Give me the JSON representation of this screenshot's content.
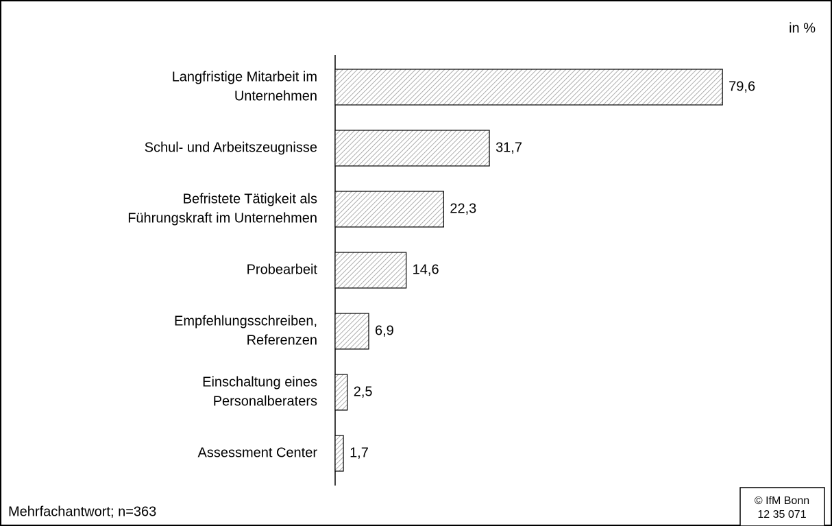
{
  "chart_data": {
    "type": "barh",
    "axis_label": "in %",
    "categories": [
      [
        "Langfristige Mitarbeit im",
        "Unternehmen"
      ],
      [
        "Schul- und Arbeitszeugnisse"
      ],
      [
        "Befristete Tätigkeit als",
        "Führungskraft im Unternehmen"
      ],
      [
        "Probearbeit"
      ],
      [
        "Empfehlungsschreiben,",
        "Referenzen"
      ],
      [
        "Einschaltung eines",
        "Personalberaters"
      ],
      [
        "Assessment Center"
      ]
    ],
    "values": [
      79.6,
      31.7,
      22.3,
      14.6,
      6.9,
      2.5,
      1.7
    ],
    "value_labels": [
      "79,6",
      "31,7",
      "22,3",
      "14,6",
      "6,9",
      "2,5",
      "1,7"
    ],
    "xlim": [
      0,
      100
    ],
    "color": "#9a9a9a",
    "footnote": "Mehrfachantwort; n=363",
    "source": [
      "© IfM Bonn",
      "12 35 071"
    ]
  }
}
